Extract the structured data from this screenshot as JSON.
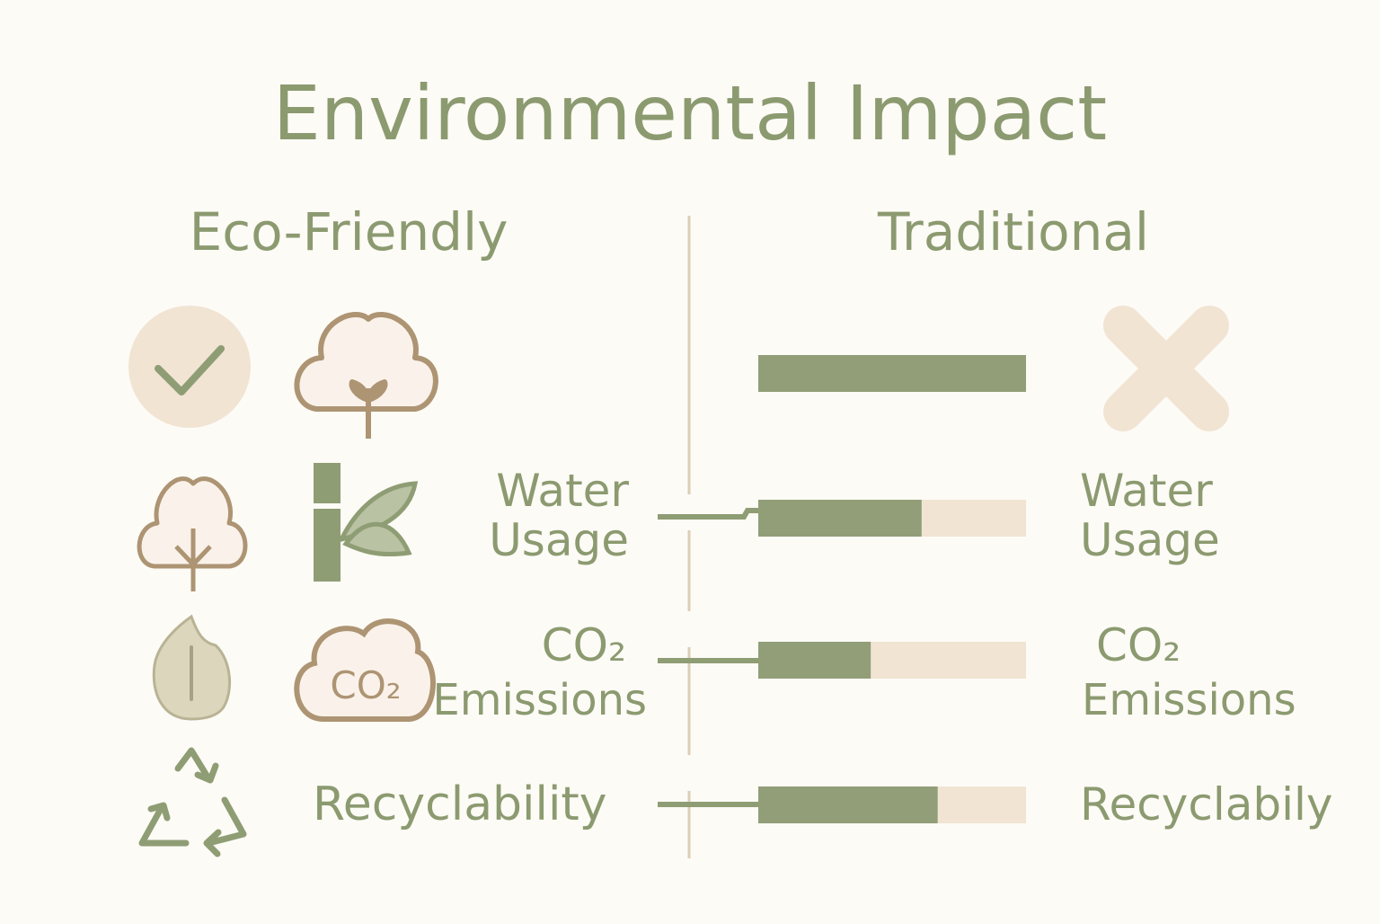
{
  "title": "Environmental Impact",
  "left_heading": "Eco-Friendly",
  "right_heading": "Traditional",
  "cloud_icon_label": "CO₂",
  "bars": {
    "values": [
      100,
      61,
      42,
      67
    ],
    "xlim": [
      0,
      100
    ],
    "fill_color": "#919e78",
    "track_color": "#f1e4d3"
  },
  "rows": [
    {
      "left": [
        "Water",
        "Usage"
      ],
      "right": [
        "Water",
        "Usage"
      ]
    },
    {
      "left": [
        "CO₂",
        "Emissions"
      ],
      "right": [
        "CO₂",
        "Emissions"
      ]
    },
    {
      "left": [
        "Recyclability"
      ],
      "right": [
        "Recyclabily"
      ]
    }
  ]
}
